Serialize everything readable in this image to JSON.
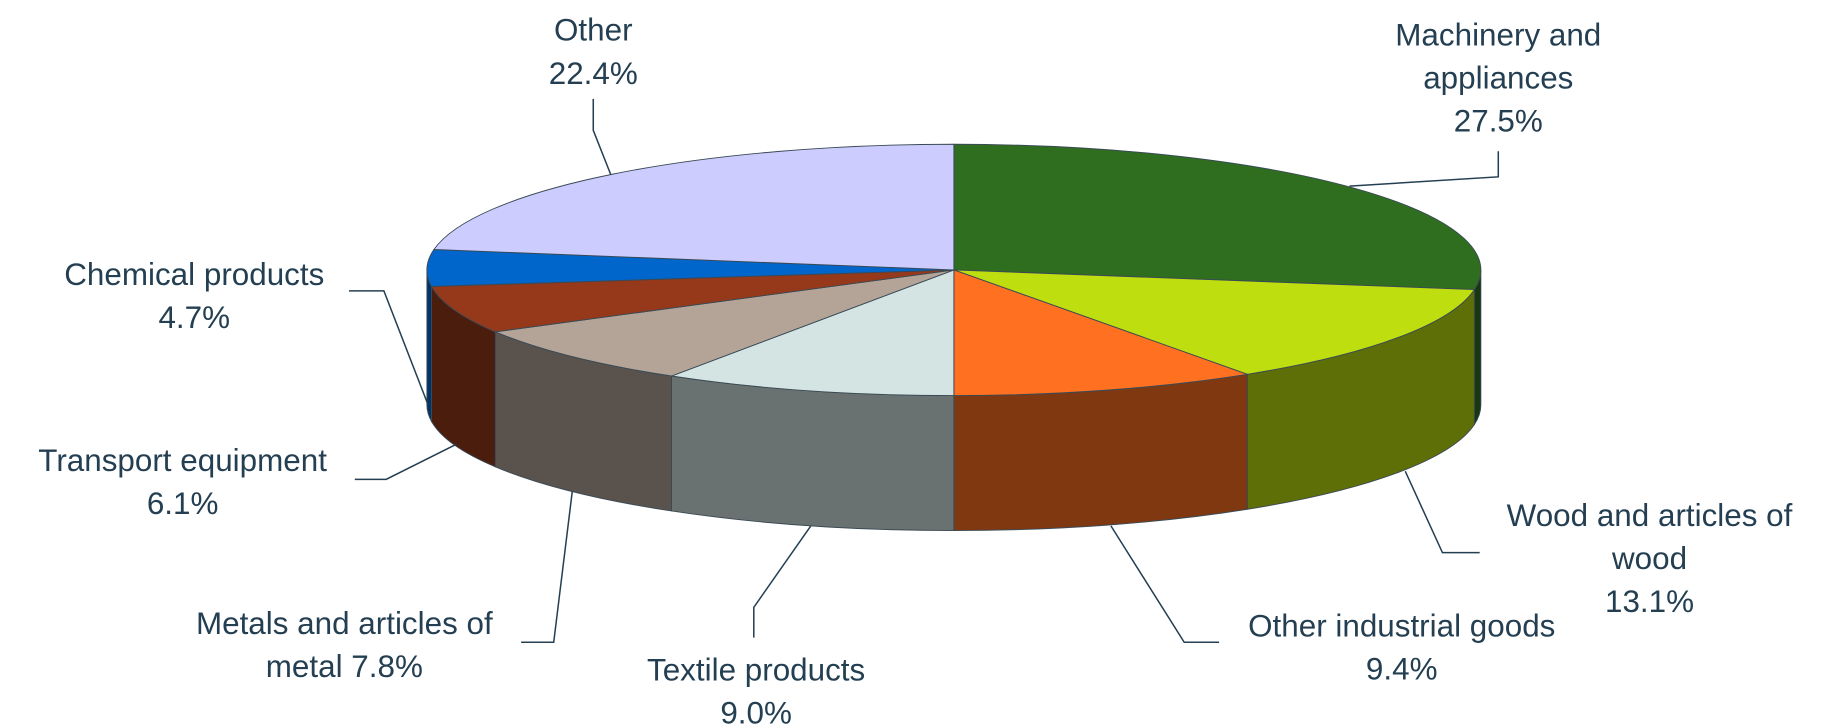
{
  "chart_data": {
    "type": "pie3d",
    "categories": [
      "Machinery and appliances",
      "Wood and articles of wood",
      "Other industrial goods",
      "Textile products",
      "Metals and articles of metal",
      "Transport equipment",
      "Chemical products",
      "Other"
    ],
    "values": [
      27.5,
      13.1,
      9.4,
      9.0,
      7.8,
      6.1,
      4.7,
      22.4
    ],
    "value_labels": [
      "27.5%",
      "13.1%",
      "9.4%",
      "9.0%",
      "7.8%",
      "6.1%",
      "4.7%",
      "22.4%"
    ],
    "colors": [
      "#2e6e1e",
      "#bede10",
      "#ff7020",
      "#d4e4e2",
      "#b4a498",
      "#96391a",
      "#0066cc",
      "#ccccff"
    ]
  }
}
